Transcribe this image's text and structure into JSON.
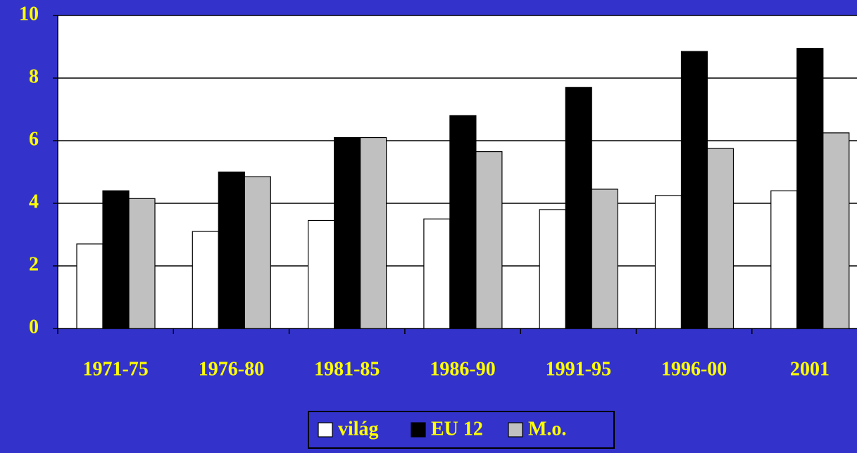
{
  "chart_data": {
    "type": "bar",
    "categories": [
      "1971-75",
      "1976-80",
      "1981-85",
      "1986-90",
      "1991-95",
      "1996-00",
      "2001"
    ],
    "series": [
      {
        "name": "világ",
        "color": "#ffffff",
        "values": [
          2.7,
          3.1,
          3.45,
          3.5,
          3.8,
          4.25,
          4.4
        ]
      },
      {
        "name": "EU 12",
        "color": "#000000",
        "values": [
          4.4,
          5.0,
          6.1,
          6.8,
          7.7,
          8.85,
          8.95
        ]
      },
      {
        "name": "M.o.",
        "color": "#c0c0c0",
        "values": [
          4.15,
          4.85,
          6.1,
          5.65,
          4.45,
          5.75,
          6.25
        ]
      }
    ],
    "ylim": [
      0,
      10
    ],
    "yticks": [
      0,
      2,
      4,
      6,
      8,
      10
    ],
    "grid": true,
    "legend": "bottom"
  }
}
